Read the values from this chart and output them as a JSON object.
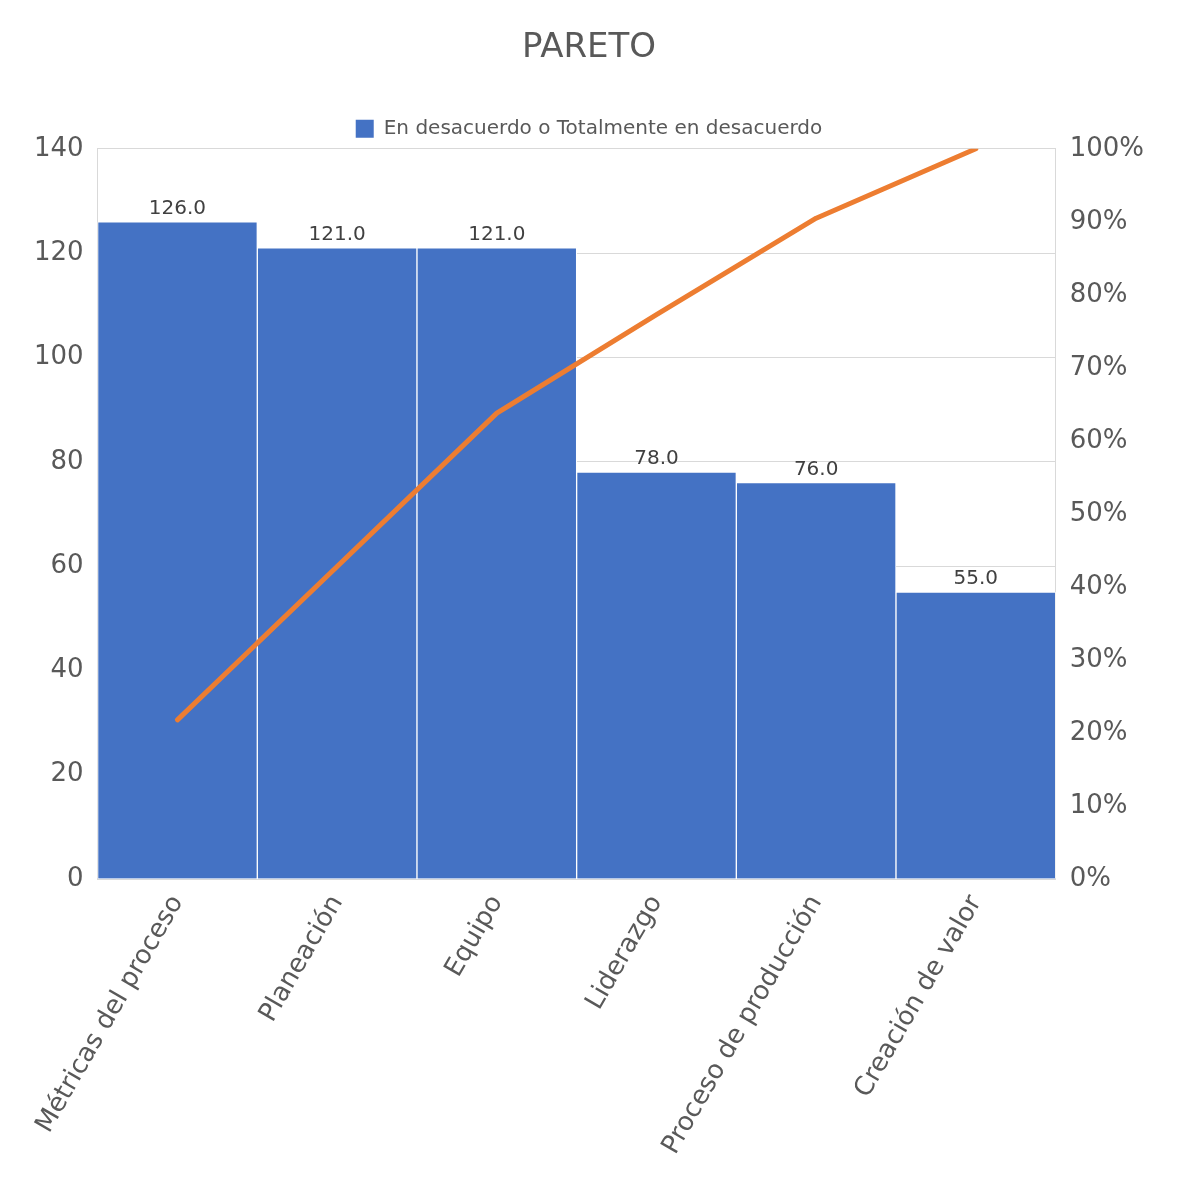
{
  "chart_data": {
    "type": "bar",
    "title": "PARETO",
    "categories": [
      "Métricas del proceso",
      "Planeación",
      "Equipo",
      "Liderazgo",
      "Proceso de producción",
      "Creación de valor"
    ],
    "series": [
      {
        "name": "En desacuerdo o Totalmente en desacuerdo",
        "color": "#4472c4",
        "values": [
          126,
          121,
          121,
          78,
          76,
          55
        ],
        "value_labels": [
          "126.0",
          "121.0",
          "121.0",
          "78.0",
          "76.0",
          "55.0"
        ]
      },
      {
        "type": "line",
        "axis": "y2",
        "color": "#ed7d31",
        "values": [
          21.8,
          42.8,
          63.8,
          77.3,
          90.5,
          100
        ]
      }
    ],
    "ylim": [
      0,
      140
    ],
    "yticks": [
      0,
      20,
      40,
      60,
      80,
      100,
      120,
      140
    ],
    "y2lim": [
      0,
      100
    ],
    "y2ticks": [
      {
        "value": 0,
        "label": "0%"
      },
      {
        "value": 10,
        "label": "10%"
      },
      {
        "value": 20,
        "label": "20%"
      },
      {
        "value": 30,
        "label": "30%"
      },
      {
        "value": 40,
        "label": "40%"
      },
      {
        "value": 50,
        "label": "50%"
      },
      {
        "value": 60,
        "label": "60%"
      },
      {
        "value": 70,
        "label": "70%"
      },
      {
        "value": 80,
        "label": "80%"
      },
      {
        "value": 90,
        "label": "90%"
      },
      {
        "value": 100,
        "label": "100%"
      }
    ],
    "grid": "y",
    "legend": "top",
    "marker": "none",
    "line_style": "solid"
  }
}
